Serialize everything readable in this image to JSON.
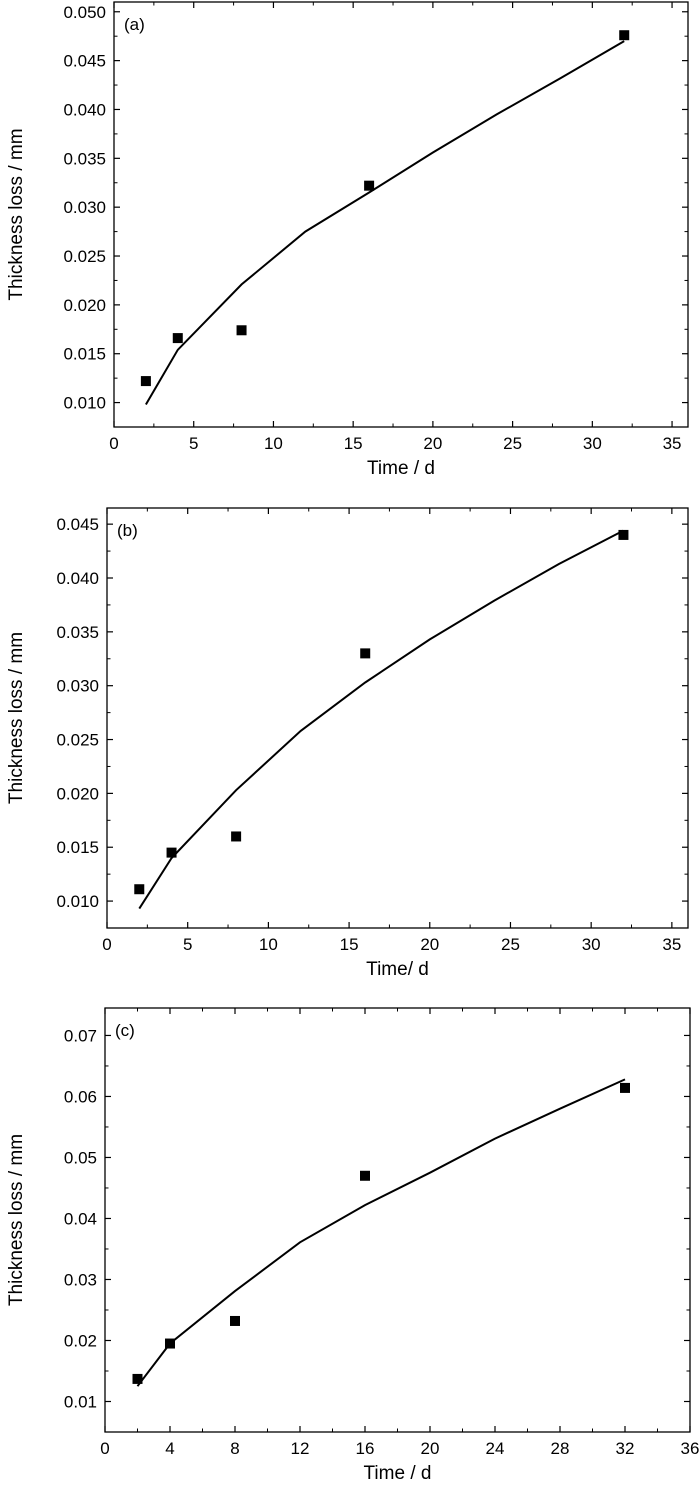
{
  "chart_data": [
    {
      "type": "scatter",
      "panel_label": "(a)",
      "xlabel": "Time / d",
      "ylabel": "Thickness loss / mm",
      "xlim": [
        0,
        36
      ],
      "ylim": [
        0.0075,
        0.051
      ],
      "xticks": [
        0,
        5,
        10,
        15,
        20,
        25,
        30,
        35
      ],
      "xtick_labels": [
        "0",
        "5",
        "10",
        "15",
        "20",
        "25",
        "30",
        "35"
      ],
      "yticks": [
        0.01,
        0.015,
        0.02,
        0.025,
        0.03,
        0.035,
        0.04,
        0.045,
        0.05
      ],
      "ytick_labels": [
        "0.010",
        "0.015",
        "0.020",
        "0.025",
        "0.030",
        "0.035",
        "0.040",
        "0.045",
        "0.050"
      ],
      "points": {
        "x": [
          2,
          4,
          8,
          16,
          32
        ],
        "y": [
          0.0122,
          0.0166,
          0.0174,
          0.0322,
          0.0476
        ]
      },
      "fit": {
        "x": [
          2,
          4,
          8,
          12,
          16,
          20,
          24,
          28,
          32
        ],
        "y": [
          0.0098,
          0.0154,
          0.0221,
          0.0275,
          0.0315,
          0.0356,
          0.0395,
          0.0432,
          0.047
        ]
      },
      "grid": false,
      "legend": "none"
    },
    {
      "type": "scatter",
      "panel_label": "(b)",
      "xlabel": "Time/ d",
      "ylabel": "Thickness loss / mm",
      "xlim": [
        0,
        36
      ],
      "ylim": [
        0.0075,
        0.0465
      ],
      "xticks": [
        0,
        5,
        10,
        15,
        20,
        25,
        30,
        35
      ],
      "xtick_labels": [
        "0",
        "5",
        "10",
        "15",
        "20",
        "25",
        "30",
        "35"
      ],
      "yticks": [
        0.01,
        0.015,
        0.02,
        0.025,
        0.03,
        0.035,
        0.04,
        0.045
      ],
      "ytick_labels": [
        "0.010",
        "0.015",
        "0.020",
        "0.025",
        "0.030",
        "0.035",
        "0.040",
        "0.045"
      ],
      "points": {
        "x": [
          2,
          4,
          8,
          16,
          32
        ],
        "y": [
          0.0111,
          0.0145,
          0.016,
          0.033,
          0.044
        ]
      },
      "fit": {
        "x": [
          2,
          4,
          8,
          12,
          16,
          20,
          24,
          28,
          32
        ],
        "y": [
          0.0093,
          0.014,
          0.0203,
          0.0258,
          0.0303,
          0.0343,
          0.0379,
          0.0413,
          0.0444
        ]
      },
      "grid": false,
      "legend": "none"
    },
    {
      "type": "scatter",
      "panel_label": "(c)",
      "xlabel": "Time / d",
      "ylabel": "Thickness loss / mm",
      "xlim": [
        0,
        36
      ],
      "ylim": [
        0.005,
        0.0745
      ],
      "xticks": [
        0,
        4,
        8,
        12,
        16,
        20,
        24,
        28,
        32,
        36
      ],
      "xtick_labels": [
        "0",
        "4",
        "8",
        "12",
        "16",
        "20",
        "24",
        "28",
        "32",
        "36"
      ],
      "yticks": [
        0.01,
        0.02,
        0.03,
        0.04,
        0.05,
        0.06,
        0.07
      ],
      "ytick_labels": [
        "0.01",
        "0.02",
        "0.03",
        "0.04",
        "0.05",
        "0.06",
        "0.07"
      ],
      "points": {
        "x": [
          2,
          4,
          8,
          16,
          32
        ],
        "y": [
          0.0137,
          0.0195,
          0.0232,
          0.047,
          0.0614
        ]
      },
      "fit": {
        "x": [
          2,
          4,
          8,
          12,
          16,
          20,
          24,
          28,
          32
        ],
        "y": [
          0.0125,
          0.0195,
          0.0281,
          0.0361,
          0.0422,
          0.0475,
          0.0531,
          0.058,
          0.0628
        ]
      },
      "grid": false,
      "legend": "none"
    }
  ]
}
